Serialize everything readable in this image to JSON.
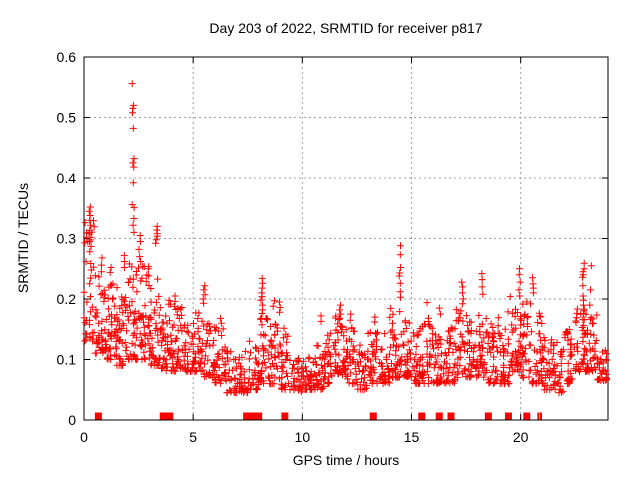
{
  "chart_data": {
    "type": "scatter",
    "title": "Day 203 of 2022, SRMTID for receiver p817",
    "xlabel": "GPS time / hours",
    "ylabel": "SRMTID / TECUs",
    "xlim": [
      0,
      24
    ],
    "ylim": [
      0,
      0.6
    ],
    "xticks": [
      "0",
      "5",
      "10",
      "15",
      "20"
    ],
    "yticks": [
      "0",
      "0.1",
      "0.2",
      "0.3",
      "0.4",
      "0.5",
      "0.6"
    ],
    "grid": {
      "style": "dashed",
      "on": true
    },
    "legend": "none",
    "marker": {
      "shape": "plus",
      "size": 7
    },
    "colors": {
      "marker": "#ff0000",
      "zero_marker": "#ff0000",
      "grid": "#9e9e9e",
      "border": "#000000",
      "text": "#000000",
      "background": "#ffffff"
    },
    "seed": 42,
    "spikes": [
      {
        "x": 2.25,
        "v": [
          0.556,
          0.52,
          0.515,
          0.508,
          0.482,
          0.432,
          0.425,
          0.418,
          0.392,
          0.356,
          0.351,
          0.333,
          0.322,
          0.31
        ]
      },
      {
        "x": 0.28,
        "v": [
          0.352,
          0.345,
          0.338,
          0.33,
          0.322,
          0.31,
          0.302,
          0.295,
          0.287,
          0.278
        ]
      },
      {
        "x": 3.32,
        "v": [
          0.32,
          0.314,
          0.308,
          0.304,
          0.298,
          0.292
        ]
      },
      {
        "x": 2.55,
        "v": [
          0.305,
          0.295,
          0.282,
          0.27,
          0.262
        ]
      },
      {
        "x": 14.47,
        "v": [
          0.288,
          0.273,
          0.252,
          0.243,
          0.238,
          0.226,
          0.212,
          0.203
        ]
      },
      {
        "x": 22.87,
        "v": [
          0.259,
          0.25,
          0.245,
          0.24,
          0.236,
          0.222,
          0.205,
          0.198,
          0.19,
          0.183,
          0.176,
          0.166,
          0.156,
          0.148
        ]
      },
      {
        "x": 23.2,
        "v": [
          0.255,
          0.215,
          0.19
        ]
      },
      {
        "x": 8.15,
        "v": [
          0.234,
          0.226,
          0.218,
          0.21,
          0.204,
          0.198,
          0.19,
          0.182,
          0.176,
          0.168
        ]
      },
      {
        "x": 5.5,
        "v": [
          0.222,
          0.215,
          0.207,
          0.2,
          0.193
        ]
      },
      {
        "x": 17.35,
        "v": [
          0.228,
          0.22,
          0.21,
          0.2,
          0.192
        ]
      },
      {
        "x": 18.25,
        "v": [
          0.242,
          0.232,
          0.22,
          0.208
        ]
      },
      {
        "x": 19.95,
        "v": [
          0.25,
          0.24,
          0.228,
          0.215,
          0.205
        ]
      },
      {
        "x": 20.55,
        "v": [
          0.235,
          0.225,
          0.218,
          0.21
        ]
      },
      {
        "x": 11.75,
        "v": [
          0.19,
          0.182,
          0.175,
          0.168
        ]
      },
      {
        "x": 1.85,
        "v": [
          0.272,
          0.262,
          0.252
        ]
      },
      {
        "x": 0.8,
        "v": [
          0.268,
          0.256,
          0.245
        ]
      },
      {
        "x": 1.2,
        "v": [
          0.252,
          0.244
        ]
      },
      {
        "x": 8.7,
        "v": [
          0.197,
          0.188
        ]
      },
      {
        "x": 8.95,
        "v": [
          0.195,
          0.186,
          0.178
        ]
      },
      {
        "x": 15.68,
        "v": [
          0.194
        ]
      },
      {
        "x": 12.2,
        "v": [
          0.175,
          0.165
        ]
      },
      {
        "x": 13.3,
        "v": [
          0.17,
          0.162
        ]
      },
      {
        "x": 16.3,
        "v": [
          0.185,
          0.175
        ]
      },
      {
        "x": 6.3,
        "v": [
          0.168,
          0.16
        ]
      },
      {
        "x": 4.2,
        "v": [
          0.205,
          0.196
        ]
      },
      {
        "x": 10.9,
        "v": [
          0.172,
          0.163
        ]
      }
    ],
    "band_bins": [
      [
        0.0,
        0.13,
        0.35,
        38
      ],
      [
        0.5,
        0.11,
        0.24,
        40
      ],
      [
        1.0,
        0.1,
        0.23,
        42
      ],
      [
        1.5,
        0.09,
        0.22,
        42
      ],
      [
        2.0,
        0.1,
        0.26,
        40
      ],
      [
        2.5,
        0.1,
        0.26,
        40
      ],
      [
        3.0,
        0.09,
        0.24,
        40
      ],
      [
        3.5,
        0.08,
        0.2,
        40
      ],
      [
        4.0,
        0.08,
        0.19,
        38
      ],
      [
        4.5,
        0.08,
        0.16,
        35
      ],
      [
        5.0,
        0.08,
        0.19,
        35
      ],
      [
        5.5,
        0.07,
        0.16,
        35
      ],
      [
        6.0,
        0.06,
        0.16,
        33
      ],
      [
        6.5,
        0.045,
        0.12,
        30
      ],
      [
        7.0,
        0.045,
        0.115,
        30
      ],
      [
        7.5,
        0.05,
        0.135,
        30
      ],
      [
        8.0,
        0.06,
        0.17,
        33
      ],
      [
        8.5,
        0.06,
        0.16,
        33
      ],
      [
        9.0,
        0.05,
        0.155,
        30
      ],
      [
        9.5,
        0.045,
        0.105,
        30
      ],
      [
        10.0,
        0.05,
        0.105,
        30
      ],
      [
        10.5,
        0.05,
        0.125,
        32
      ],
      [
        11.0,
        0.06,
        0.145,
        34
      ],
      [
        11.5,
        0.075,
        0.175,
        40
      ],
      [
        12.0,
        0.06,
        0.155,
        35
      ],
      [
        12.5,
        0.05,
        0.125,
        30
      ],
      [
        13.0,
        0.06,
        0.15,
        34
      ],
      [
        13.5,
        0.06,
        0.145,
        34
      ],
      [
        14.0,
        0.07,
        0.185,
        38
      ],
      [
        14.5,
        0.07,
        0.17,
        35
      ],
      [
        15.0,
        0.06,
        0.155,
        35
      ],
      [
        15.5,
        0.06,
        0.175,
        35
      ],
      [
        16.0,
        0.06,
        0.15,
        35
      ],
      [
        16.5,
        0.06,
        0.155,
        35
      ],
      [
        17.0,
        0.07,
        0.185,
        36
      ],
      [
        17.5,
        0.07,
        0.185,
        36
      ],
      [
        18.0,
        0.07,
        0.175,
        36
      ],
      [
        18.5,
        0.06,
        0.17,
        35
      ],
      [
        19.0,
        0.06,
        0.18,
        35
      ],
      [
        19.5,
        0.08,
        0.21,
        38
      ],
      [
        20.0,
        0.07,
        0.2,
        38
      ],
      [
        20.5,
        0.06,
        0.185,
        36
      ],
      [
        21.0,
        0.05,
        0.14,
        33
      ],
      [
        21.5,
        0.045,
        0.13,
        32
      ],
      [
        22.0,
        0.06,
        0.15,
        33
      ],
      [
        22.5,
        0.08,
        0.185,
        35
      ],
      [
        23.0,
        0.08,
        0.175,
        35
      ],
      [
        23.5,
        0.065,
        0.125,
        30
      ]
    ],
    "zero_markers": {
      "shape": "filled-square",
      "square_hours": [
        0.66,
        3.63,
        3.93,
        7.45,
        7.7,
        8.0,
        9.2,
        13.25,
        15.47,
        16.27,
        16.81,
        18.52,
        19.44,
        20.28
      ],
      "thin_hours": [
        20.81,
        20.93
      ]
    }
  }
}
